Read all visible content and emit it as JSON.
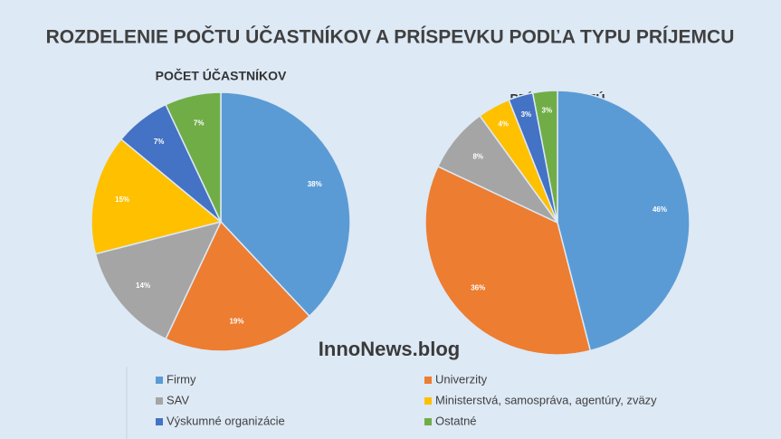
{
  "title": "ROZDELENIE POČTU ÚČASTNÍKOV  A PRÍSPEVKU PODĽA TYPU PRÍJEMCU",
  "watermark": "InnoNews.blog",
  "chart_data": [
    {
      "type": "pie",
      "title": "POČET ÚČASTNÍKOV",
      "categories": [
        "Firmy",
        "Univerzity",
        "SAV",
        "Ministerstvá, samospráva, agentúry, zväzy",
        "Výskumné organizácie",
        "Ostatné"
      ],
      "values": [
        38,
        19,
        14,
        15,
        7,
        7
      ],
      "value_labels": [
        "38%",
        "19%",
        "14%",
        "15%",
        "7%",
        "7%"
      ],
      "colors": [
        "#5b9bd5",
        "#ed7d31",
        "#a5a5a5",
        "#ffc000",
        "#4472c4",
        "#70ad47"
      ]
    },
    {
      "type": "pie",
      "title": "PRÍSPEVOK EÚ",
      "categories": [
        "Firmy",
        "Univerzity",
        "SAV",
        "Ministerstvá, samospráva, agentúry, zväzy",
        "Výskumné organizácie",
        "Ostatné"
      ],
      "values": [
        46,
        36,
        8,
        4,
        3,
        3
      ],
      "value_labels": [
        "46%",
        "36%",
        "8%",
        "4%",
        "3%",
        "3%"
      ],
      "colors": [
        "#5b9bd5",
        "#ed7d31",
        "#a5a5a5",
        "#ffc000",
        "#4472c4",
        "#70ad47"
      ]
    }
  ]
}
